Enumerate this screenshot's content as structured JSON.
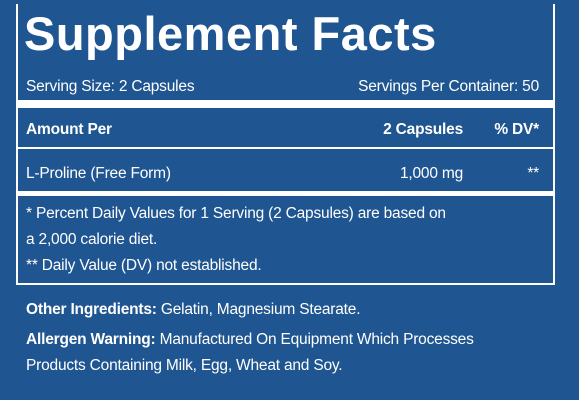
{
  "title": "Supplement Facts",
  "serving_size": "Serving Size: 2 Capsules",
  "servings_per_container": "Servings Per Container: 50",
  "table": {
    "header": [
      "Amount Per",
      "2 Capsules",
      "% DV*"
    ],
    "rows": [
      [
        "L-Proline (Free Form)",
        "1,000 mg",
        "**"
      ]
    ]
  },
  "footnotes": [
    "* Percent Daily Values for 1 Serving (2 Capsules) are based on",
    "a 2,000 calorie diet.",
    "** Daily Value (DV) not established."
  ],
  "other_ingredients": {
    "label": "Other Ingredients:",
    "text": "Gelatin, Magnesium Stearate."
  },
  "allergen_warning": {
    "label": "Allergen Warning:",
    "lines": [
      "Manufactured On Equipment Which Processes",
      "Products Containing Milk, Egg, Wheat and Soy."
    ]
  }
}
